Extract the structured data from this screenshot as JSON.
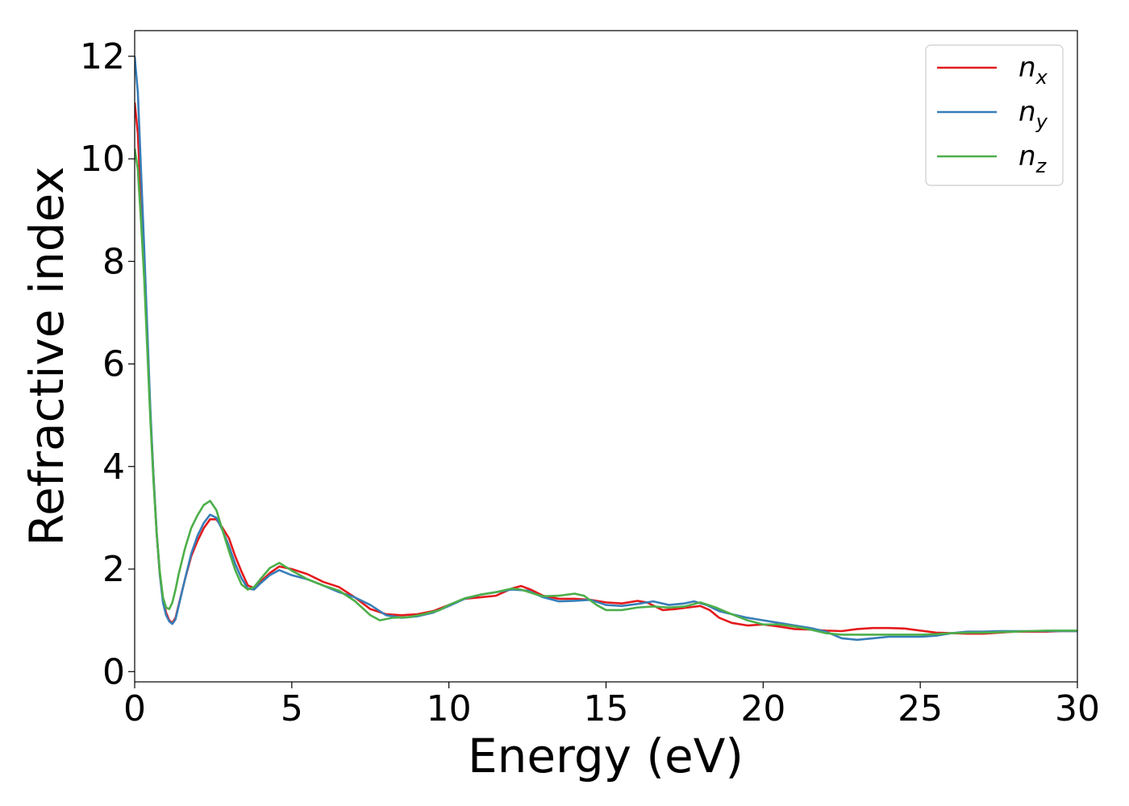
{
  "chart_data": {
    "type": "line",
    "xlabel": "Energy (eV)",
    "ylabel": "Refractive index",
    "xlim": [
      0,
      30
    ],
    "ylim": [
      -0.2,
      12.5
    ],
    "xticks": [
      "0",
      "5",
      "10",
      "15",
      "20",
      "25",
      "30"
    ],
    "yticks": [
      "0",
      "2",
      "4",
      "6",
      "8",
      "10",
      "12"
    ],
    "grid": false,
    "legend_position": "top-right",
    "series": [
      {
        "name": "n_x",
        "label_main": "n",
        "label_sub": "x",
        "color": "#e41a1c",
        "points": [
          [
            0,
            11.1
          ],
          [
            0.1,
            10.5
          ],
          [
            0.2,
            9.2
          ],
          [
            0.3,
            8.0
          ],
          [
            0.4,
            6.5
          ],
          [
            0.5,
            5.0
          ],
          [
            0.6,
            3.8
          ],
          [
            0.7,
            2.7
          ],
          [
            0.8,
            1.9
          ],
          [
            0.9,
            1.4
          ],
          [
            1.0,
            1.15
          ],
          [
            1.1,
            1.0
          ],
          [
            1.2,
            0.95
          ],
          [
            1.3,
            1.05
          ],
          [
            1.4,
            1.3
          ],
          [
            1.6,
            1.8
          ],
          [
            1.8,
            2.25
          ],
          [
            2.0,
            2.55
          ],
          [
            2.2,
            2.8
          ],
          [
            2.4,
            2.97
          ],
          [
            2.6,
            2.97
          ],
          [
            2.8,
            2.8
          ],
          [
            3.0,
            2.6
          ],
          [
            3.2,
            2.25
          ],
          [
            3.4,
            1.95
          ],
          [
            3.6,
            1.68
          ],
          [
            3.8,
            1.63
          ],
          [
            4.0,
            1.75
          ],
          [
            4.3,
            1.92
          ],
          [
            4.6,
            2.05
          ],
          [
            5.0,
            2.0
          ],
          [
            5.5,
            1.9
          ],
          [
            6.0,
            1.75
          ],
          [
            6.5,
            1.65
          ],
          [
            7.0,
            1.45
          ],
          [
            7.5,
            1.22
          ],
          [
            8.0,
            1.12
          ],
          [
            8.5,
            1.1
          ],
          [
            9.0,
            1.12
          ],
          [
            9.5,
            1.18
          ],
          [
            10.0,
            1.3
          ],
          [
            10.5,
            1.42
          ],
          [
            11.0,
            1.45
          ],
          [
            11.5,
            1.48
          ],
          [
            12.0,
            1.62
          ],
          [
            12.3,
            1.67
          ],
          [
            12.6,
            1.6
          ],
          [
            13.0,
            1.48
          ],
          [
            13.5,
            1.42
          ],
          [
            14.0,
            1.42
          ],
          [
            14.5,
            1.4
          ],
          [
            15.0,
            1.35
          ],
          [
            15.5,
            1.33
          ],
          [
            16.0,
            1.38
          ],
          [
            16.3,
            1.35
          ],
          [
            16.8,
            1.2
          ],
          [
            17.2,
            1.22
          ],
          [
            17.6,
            1.25
          ],
          [
            18.0,
            1.28
          ],
          [
            18.3,
            1.2
          ],
          [
            18.6,
            1.05
          ],
          [
            19.0,
            0.95
          ],
          [
            19.5,
            0.9
          ],
          [
            20.0,
            0.92
          ],
          [
            20.5,
            0.88
          ],
          [
            21.0,
            0.83
          ],
          [
            21.5,
            0.82
          ],
          [
            22.0,
            0.8
          ],
          [
            22.5,
            0.79
          ],
          [
            23.0,
            0.83
          ],
          [
            23.5,
            0.85
          ],
          [
            24.0,
            0.85
          ],
          [
            24.5,
            0.84
          ],
          [
            25.0,
            0.8
          ],
          [
            25.5,
            0.76
          ],
          [
            26.0,
            0.75
          ],
          [
            26.5,
            0.74
          ],
          [
            27.0,
            0.74
          ],
          [
            27.5,
            0.76
          ],
          [
            28.0,
            0.78
          ],
          [
            28.5,
            0.78
          ],
          [
            29.0,
            0.78
          ],
          [
            29.5,
            0.79
          ],
          [
            30.0,
            0.79
          ]
        ]
      },
      {
        "name": "n_y",
        "label_main": "n",
        "label_sub": "y",
        "color": "#377eb8",
        "points": [
          [
            0,
            12.0
          ],
          [
            0.1,
            11.3
          ],
          [
            0.2,
            9.8
          ],
          [
            0.3,
            8.3
          ],
          [
            0.4,
            6.7
          ],
          [
            0.5,
            5.1
          ],
          [
            0.6,
            3.8
          ],
          [
            0.7,
            2.7
          ],
          [
            0.8,
            1.9
          ],
          [
            0.9,
            1.35
          ],
          [
            1.0,
            1.1
          ],
          [
            1.1,
            0.98
          ],
          [
            1.2,
            0.93
          ],
          [
            1.3,
            1.02
          ],
          [
            1.4,
            1.28
          ],
          [
            1.6,
            1.8
          ],
          [
            1.8,
            2.3
          ],
          [
            2.0,
            2.65
          ],
          [
            2.2,
            2.9
          ],
          [
            2.4,
            3.06
          ],
          [
            2.6,
            3.0
          ],
          [
            2.8,
            2.75
          ],
          [
            3.0,
            2.45
          ],
          [
            3.2,
            2.1
          ],
          [
            3.4,
            1.82
          ],
          [
            3.6,
            1.62
          ],
          [
            3.8,
            1.6
          ],
          [
            4.0,
            1.72
          ],
          [
            4.3,
            1.88
          ],
          [
            4.6,
            1.98
          ],
          [
            5.0,
            1.88
          ],
          [
            5.5,
            1.8
          ],
          [
            6.0,
            1.68
          ],
          [
            6.5,
            1.55
          ],
          [
            7.0,
            1.45
          ],
          [
            7.5,
            1.3
          ],
          [
            8.0,
            1.1
          ],
          [
            8.5,
            1.05
          ],
          [
            9.0,
            1.08
          ],
          [
            9.5,
            1.15
          ],
          [
            10.0,
            1.28
          ],
          [
            10.5,
            1.42
          ],
          [
            11.0,
            1.5
          ],
          [
            11.5,
            1.55
          ],
          [
            12.0,
            1.6
          ],
          [
            12.5,
            1.58
          ],
          [
            13.0,
            1.45
          ],
          [
            13.5,
            1.37
          ],
          [
            14.0,
            1.38
          ],
          [
            14.5,
            1.4
          ],
          [
            15.0,
            1.3
          ],
          [
            15.5,
            1.28
          ],
          [
            16.0,
            1.32
          ],
          [
            16.5,
            1.37
          ],
          [
            17.0,
            1.3
          ],
          [
            17.5,
            1.33
          ],
          [
            17.8,
            1.37
          ],
          [
            18.2,
            1.3
          ],
          [
            18.6,
            1.18
          ],
          [
            19.0,
            1.12
          ],
          [
            19.5,
            1.05
          ],
          [
            20.0,
            1.0
          ],
          [
            20.5,
            0.95
          ],
          [
            21.0,
            0.9
          ],
          [
            21.5,
            0.85
          ],
          [
            22.0,
            0.78
          ],
          [
            22.5,
            0.65
          ],
          [
            23.0,
            0.62
          ],
          [
            23.5,
            0.65
          ],
          [
            24.0,
            0.68
          ],
          [
            24.5,
            0.68
          ],
          [
            25.0,
            0.68
          ],
          [
            25.5,
            0.7
          ],
          [
            26.0,
            0.75
          ],
          [
            26.5,
            0.78
          ],
          [
            27.0,
            0.78
          ],
          [
            27.5,
            0.79
          ],
          [
            28.0,
            0.79
          ],
          [
            28.5,
            0.79
          ],
          [
            29.0,
            0.79
          ],
          [
            29.5,
            0.79
          ],
          [
            30.0,
            0.79
          ]
        ]
      },
      {
        "name": "n_z",
        "label_main": "n",
        "label_sub": "z",
        "color": "#4daf4a",
        "points": [
          [
            0,
            10.2
          ],
          [
            0.1,
            9.8
          ],
          [
            0.2,
            8.8
          ],
          [
            0.3,
            7.7
          ],
          [
            0.4,
            6.3
          ],
          [
            0.5,
            4.9
          ],
          [
            0.6,
            3.7
          ],
          [
            0.7,
            2.7
          ],
          [
            0.8,
            1.95
          ],
          [
            0.9,
            1.45
          ],
          [
            1.0,
            1.25
          ],
          [
            1.1,
            1.22
          ],
          [
            1.2,
            1.35
          ],
          [
            1.3,
            1.6
          ],
          [
            1.4,
            1.9
          ],
          [
            1.6,
            2.4
          ],
          [
            1.8,
            2.8
          ],
          [
            2.0,
            3.05
          ],
          [
            2.2,
            3.25
          ],
          [
            2.4,
            3.33
          ],
          [
            2.6,
            3.15
          ],
          [
            2.8,
            2.75
          ],
          [
            3.0,
            2.35
          ],
          [
            3.2,
            1.98
          ],
          [
            3.4,
            1.7
          ],
          [
            3.6,
            1.6
          ],
          [
            3.8,
            1.65
          ],
          [
            4.0,
            1.8
          ],
          [
            4.3,
            2.02
          ],
          [
            4.6,
            2.12
          ],
          [
            5.0,
            1.97
          ],
          [
            5.5,
            1.8
          ],
          [
            6.0,
            1.68
          ],
          [
            6.5,
            1.58
          ],
          [
            7.0,
            1.38
          ],
          [
            7.5,
            1.1
          ],
          [
            7.8,
            1.0
          ],
          [
            8.2,
            1.05
          ],
          [
            8.7,
            1.06
          ],
          [
            9.2,
            1.12
          ],
          [
            9.7,
            1.2
          ],
          [
            10.0,
            1.3
          ],
          [
            10.5,
            1.43
          ],
          [
            11.0,
            1.5
          ],
          [
            11.5,
            1.55
          ],
          [
            12.0,
            1.62
          ],
          [
            12.3,
            1.6
          ],
          [
            12.7,
            1.52
          ],
          [
            13.0,
            1.47
          ],
          [
            13.5,
            1.48
          ],
          [
            14.0,
            1.52
          ],
          [
            14.3,
            1.48
          ],
          [
            14.7,
            1.3
          ],
          [
            15.0,
            1.2
          ],
          [
            15.5,
            1.2
          ],
          [
            16.0,
            1.25
          ],
          [
            16.5,
            1.27
          ],
          [
            17.0,
            1.25
          ],
          [
            17.5,
            1.27
          ],
          [
            18.0,
            1.35
          ],
          [
            18.5,
            1.25
          ],
          [
            19.0,
            1.12
          ],
          [
            19.5,
            1.0
          ],
          [
            20.0,
            0.92
          ],
          [
            20.5,
            0.92
          ],
          [
            21.0,
            0.88
          ],
          [
            21.5,
            0.82
          ],
          [
            22.0,
            0.75
          ],
          [
            22.5,
            0.72
          ],
          [
            23.0,
            0.72
          ],
          [
            23.5,
            0.72
          ],
          [
            24.0,
            0.72
          ],
          [
            24.5,
            0.72
          ],
          [
            25.0,
            0.72
          ],
          [
            25.5,
            0.73
          ],
          [
            26.0,
            0.75
          ],
          [
            26.5,
            0.76
          ],
          [
            27.0,
            0.76
          ],
          [
            27.5,
            0.77
          ],
          [
            28.0,
            0.78
          ],
          [
            28.5,
            0.79
          ],
          [
            29.0,
            0.8
          ],
          [
            29.5,
            0.8
          ],
          [
            30.0,
            0.8
          ]
        ]
      }
    ]
  }
}
